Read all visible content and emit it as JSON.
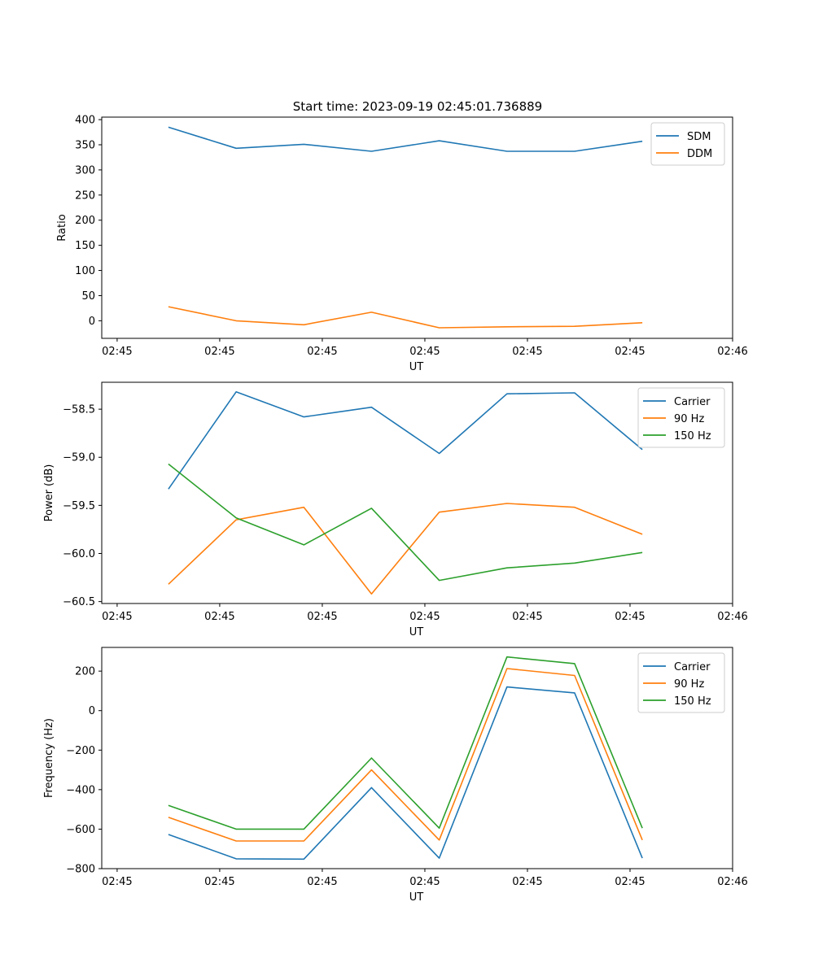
{
  "figure": {
    "title": "Start time: 2023-09-19 02:45:01.736889"
  },
  "colors": {
    "series1": "#1f77b4",
    "series2": "#ff7f0e",
    "series3": "#2ca02c",
    "axis": "#000000",
    "legend_border": "#cccccc"
  },
  "chart_data": [
    {
      "type": "line",
      "title": "Start time: 2023-09-19 02:45:01.736889",
      "xlabel": "UT",
      "ylabel": "Ratio",
      "xlim": [
        -0.35,
        5.8
      ],
      "ylim": [
        -35,
        405
      ],
      "x_ticks": [
        {
          "v": -0.2,
          "label": "02:45"
        },
        {
          "v": 0.8,
          "label": "02:45"
        },
        {
          "v": 1.8,
          "label": "02:45"
        },
        {
          "v": 2.8,
          "label": "02:45"
        },
        {
          "v": 3.8,
          "label": "02:45"
        },
        {
          "v": 4.8,
          "label": "02:45"
        },
        {
          "v": 5.8,
          "label": "02:46"
        }
      ],
      "y_ticks": [
        0,
        50,
        100,
        150,
        200,
        250,
        300,
        350,
        400
      ],
      "y_tick_labels": [
        "0",
        "50",
        "100",
        "150",
        "200",
        "250",
        "300",
        "350",
        "400"
      ],
      "legend_position": "top-right",
      "x": [
        0.3,
        0.96,
        1.62,
        2.28,
        2.94,
        3.6,
        4.26,
        4.92
      ],
      "series": [
        {
          "name": "SDM",
          "color": "#1f77b4",
          "values": [
            385,
            343,
            351,
            337,
            358,
            337,
            337,
            357
          ]
        },
        {
          "name": "DDM",
          "color": "#ff7f0e",
          "values": [
            28,
            0,
            -8,
            17,
            -14,
            -12,
            -11,
            -4
          ]
        }
      ]
    },
    {
      "type": "line",
      "xlabel": "UT",
      "ylabel": "Power (dB)",
      "xlim": [
        -0.35,
        5.8
      ],
      "ylim": [
        -60.52,
        -58.22
      ],
      "x_ticks": [
        {
          "v": -0.2,
          "label": "02:45"
        },
        {
          "v": 0.8,
          "label": "02:45"
        },
        {
          "v": 1.8,
          "label": "02:45"
        },
        {
          "v": 2.8,
          "label": "02:45"
        },
        {
          "v": 3.8,
          "label": "02:45"
        },
        {
          "v": 4.8,
          "label": "02:45"
        },
        {
          "v": 5.8,
          "label": "02:46"
        }
      ],
      "y_ticks": [
        -58.5,
        -59.0,
        -59.5,
        -60.0,
        -60.5
      ],
      "y_tick_labels": [
        "−58.5",
        "−59.0",
        "−59.5",
        "−60.0",
        "−60.5"
      ],
      "legend_position": "top-right",
      "x": [
        0.3,
        0.96,
        1.62,
        2.28,
        2.94,
        3.6,
        4.26,
        4.92
      ],
      "series": [
        {
          "name": "Carrier",
          "color": "#1f77b4",
          "values": [
            -59.33,
            -58.32,
            -58.58,
            -58.48,
            -58.96,
            -58.34,
            -58.33,
            -58.92
          ]
        },
        {
          "name": "90 Hz",
          "color": "#ff7f0e",
          "values": [
            -60.32,
            -59.65,
            -59.52,
            -60.42,
            -59.57,
            -59.48,
            -59.52,
            -59.8
          ]
        },
        {
          "name": "150 Hz",
          "color": "#2ca02c",
          "values": [
            -59.07,
            -59.63,
            -59.91,
            -59.53,
            -60.28,
            -60.15,
            -60.1,
            -59.99
          ]
        }
      ]
    },
    {
      "type": "line",
      "xlabel": "UT",
      "ylabel": "Frequency (Hz)",
      "xlim": [
        -0.35,
        5.8
      ],
      "ylim": [
        -800,
        320
      ],
      "x_ticks": [
        {
          "v": -0.2,
          "label": "02:45"
        },
        {
          "v": 0.8,
          "label": "02:45"
        },
        {
          "v": 1.8,
          "label": "02:45"
        },
        {
          "v": 2.8,
          "label": "02:45"
        },
        {
          "v": 3.8,
          "label": "02:45"
        },
        {
          "v": 4.8,
          "label": "02:45"
        },
        {
          "v": 5.8,
          "label": "02:46"
        }
      ],
      "y_ticks": [
        200,
        0,
        -200,
        -400,
        -600,
        -800
      ],
      "y_tick_labels": [
        "200",
        "0",
        "−200",
        "−400",
        "−600",
        "−800"
      ],
      "legend_position": "top-right",
      "x": [
        0.3,
        0.96,
        1.62,
        2.28,
        2.94,
        3.6,
        4.26,
        4.92
      ],
      "series": [
        {
          "name": "Carrier",
          "color": "#1f77b4",
          "values": [
            -627,
            -750,
            -752,
            -390,
            -747,
            120,
            90,
            -747
          ]
        },
        {
          "name": "90 Hz",
          "color": "#ff7f0e",
          "values": [
            -540,
            -660,
            -660,
            -300,
            -655,
            213,
            178,
            -655
          ]
        },
        {
          "name": "150 Hz",
          "color": "#2ca02c",
          "values": [
            -480,
            -600,
            -600,
            -240,
            -595,
            272,
            238,
            -595
          ]
        }
      ]
    }
  ]
}
